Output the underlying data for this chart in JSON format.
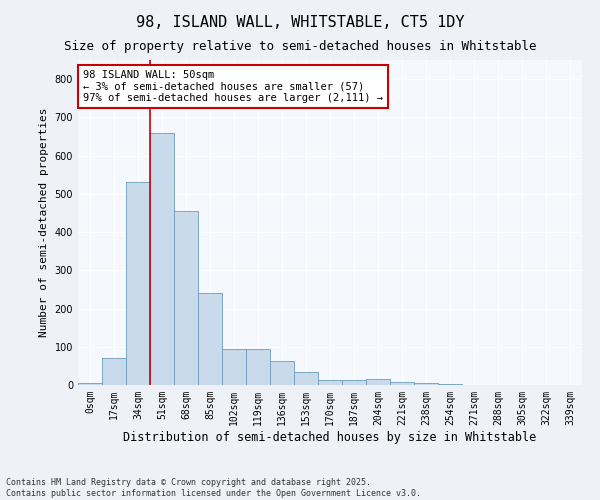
{
  "title": "98, ISLAND WALL, WHITSTABLE, CT5 1DY",
  "subtitle": "Size of property relative to semi-detached houses in Whitstable",
  "xlabel": "Distribution of semi-detached houses by size in Whitstable",
  "ylabel": "Number of semi-detached properties",
  "footer": "Contains HM Land Registry data © Crown copyright and database right 2025.\nContains public sector information licensed under the Open Government Licence v3.0.",
  "annotation_title": "98 ISLAND WALL: 50sqm",
  "annotation_line1": "← 3% of semi-detached houses are smaller (57)",
  "annotation_line2": "97% of semi-detached houses are larger (2,111) →",
  "bar_color": "#c9daea",
  "bar_edge_color": "#6a9dc0",
  "vline_color": "#cc0000",
  "annotation_box_color": "#cc0000",
  "categories": [
    "0sqm",
    "17sqm",
    "34sqm",
    "51sqm",
    "68sqm",
    "85sqm",
    "102sqm",
    "119sqm",
    "136sqm",
    "153sqm",
    "170sqm",
    "187sqm",
    "204sqm",
    "221sqm",
    "238sqm",
    "254sqm",
    "271sqm",
    "288sqm",
    "305sqm",
    "322sqm",
    "339sqm"
  ],
  "values": [
    5,
    70,
    530,
    660,
    455,
    240,
    93,
    93,
    63,
    35,
    13,
    13,
    15,
    7,
    4,
    2,
    1,
    0,
    0,
    0,
    0
  ],
  "ylim": [
    0,
    850
  ],
  "vline_x": 2.5,
  "bg_color": "#eef2f7",
  "plot_bg_color": "#f5f8fc",
  "grid_color": "#ffffff",
  "title_fontsize": 11,
  "subtitle_fontsize": 9,
  "ylabel_fontsize": 8,
  "xlabel_fontsize": 8.5,
  "tick_fontsize": 7,
  "annotation_fontsize": 7.5,
  "footer_fontsize": 6
}
